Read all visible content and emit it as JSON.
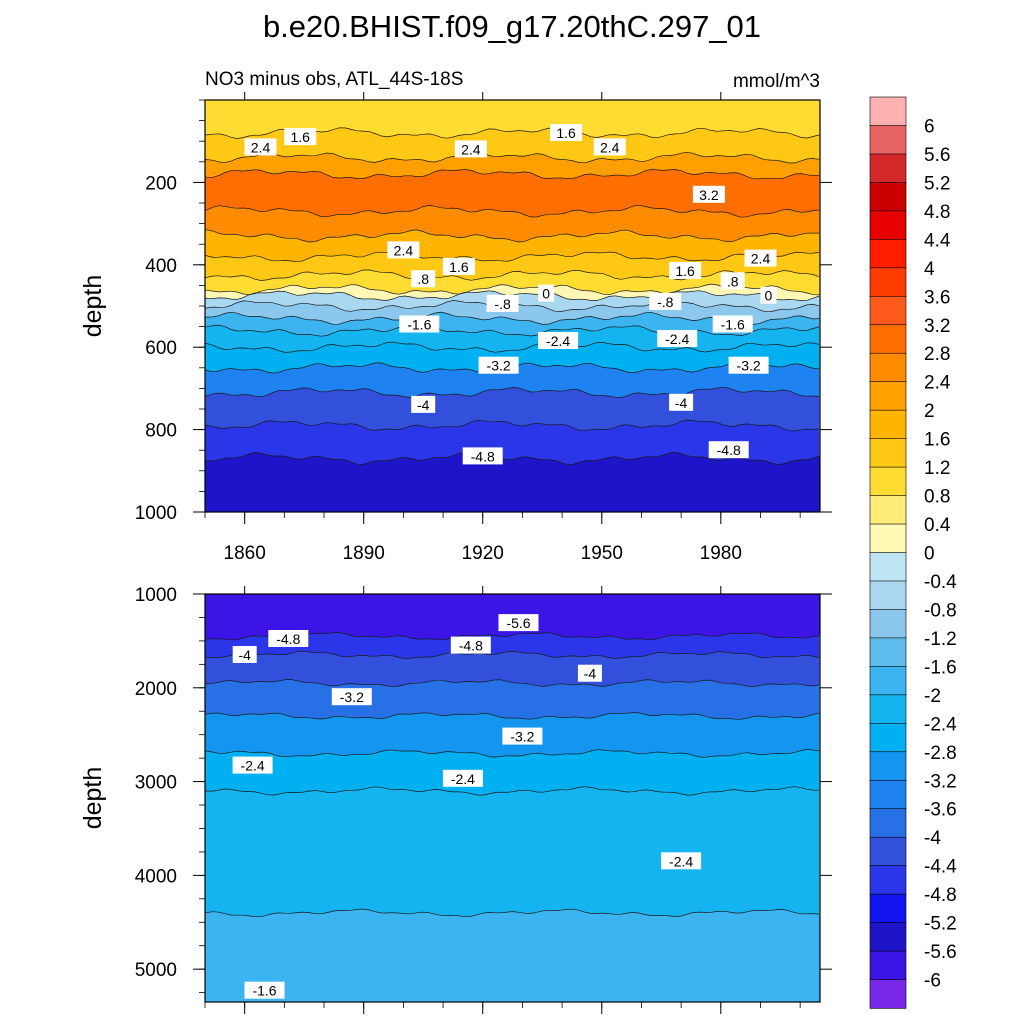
{
  "figure": {
    "title": "b.e20.BHIST.f09_g17.20thC.297_01",
    "subtitle_left": "NO3 minus obs, ATL_44S-18S",
    "subtitle_right": "mmol/m^3"
  },
  "chart_data": [
    {
      "type": "heatmap",
      "panel": "upper",
      "ylabel": "depth",
      "xlabel": "",
      "x_ticks": [
        1860,
        1890,
        1920,
        1950,
        1980
      ],
      "xlim": [
        1850,
        2005
      ],
      "y_ticks": [
        200,
        400,
        600,
        800,
        1000
      ],
      "ylim": [
        0,
        1000
      ],
      "y_inverted": true,
      "bands": [
        {
          "from": 0,
          "to": 80,
          "value": 1.2
        },
        {
          "from": 80,
          "to": 140,
          "value": 1.6
        },
        {
          "from": 140,
          "to": 180,
          "value": 2.4
        },
        {
          "from": 180,
          "to": 270,
          "value": 3.0
        },
        {
          "from": 270,
          "to": 330,
          "value": 2.6
        },
        {
          "from": 330,
          "to": 380,
          "value": 2.0
        },
        {
          "from": 380,
          "to": 425,
          "value": 1.6
        },
        {
          "from": 425,
          "to": 460,
          "value": 1.0
        },
        {
          "from": 460,
          "to": 475,
          "value": 0.4
        },
        {
          "from": 475,
          "to": 500,
          "value": -0.4
        },
        {
          "from": 500,
          "to": 530,
          "value": -1.0
        },
        {
          "from": 530,
          "to": 560,
          "value": -1.6
        },
        {
          "from": 560,
          "to": 600,
          "value": -2.2
        },
        {
          "from": 600,
          "to": 650,
          "value": -2.8
        },
        {
          "from": 650,
          "to": 710,
          "value": -3.4
        },
        {
          "from": 710,
          "to": 790,
          "value": -4.0
        },
        {
          "from": 790,
          "to": 870,
          "value": -4.6
        },
        {
          "from": 870,
          "to": 1000,
          "value": -5.2
        }
      ],
      "contour_labels": [
        {
          "text": "1.6",
          "x": 1874,
          "y": 90
        },
        {
          "text": "2.4",
          "x": 1864,
          "y": 115
        },
        {
          "text": "2.4",
          "x": 1917,
          "y": 120
        },
        {
          "text": "1.6",
          "x": 1941,
          "y": 80
        },
        {
          "text": "2.4",
          "x": 1952,
          "y": 115
        },
        {
          "text": "3.2",
          "x": 1977,
          "y": 230
        },
        {
          "text": "2.4",
          "x": 1900,
          "y": 365
        },
        {
          "text": "1.6",
          "x": 1914,
          "y": 405
        },
        {
          "text": "2.4",
          "x": 1990,
          "y": 385
        },
        {
          "text": "1.6",
          "x": 1971,
          "y": 415
        },
        {
          "text": ".8",
          "x": 1905,
          "y": 435
        },
        {
          "text": ".8",
          "x": 1983,
          "y": 440
        },
        {
          "text": "0",
          "x": 1936,
          "y": 470
        },
        {
          "text": "0",
          "x": 1992,
          "y": 475
        },
        {
          "text": "-.8",
          "x": 1925,
          "y": 495
        },
        {
          "text": "-.8",
          "x": 1966,
          "y": 490
        },
        {
          "text": "-1.6",
          "x": 1904,
          "y": 545
        },
        {
          "text": "-1.6",
          "x": 1983,
          "y": 545
        },
        {
          "text": "-2.4",
          "x": 1939,
          "y": 585
        },
        {
          "text": "-2.4",
          "x": 1969,
          "y": 580
        },
        {
          "text": "-3.2",
          "x": 1924,
          "y": 645
        },
        {
          "text": "-3.2",
          "x": 1987,
          "y": 645
        },
        {
          "text": "-4",
          "x": 1905,
          "y": 740
        },
        {
          "text": "-4",
          "x": 1970,
          "y": 735
        },
        {
          "text": "-4.8",
          "x": 1920,
          "y": 865
        },
        {
          "text": "-4.8",
          "x": 1982,
          "y": 850
        }
      ]
    },
    {
      "type": "heatmap",
      "panel": "lower",
      "ylabel": "depth",
      "xlabel": "",
      "x_ticks": [
        1860,
        1890,
        1920,
        1950,
        1980
      ],
      "xlim": [
        1850,
        2005
      ],
      "y_ticks": [
        1000,
        2000,
        3000,
        4000,
        5000
      ],
      "ylim": [
        1000,
        5350
      ],
      "y_inverted": true,
      "bands": [
        {
          "from": 1000,
          "to": 1450,
          "value": -5.6
        },
        {
          "from": 1450,
          "to": 1650,
          "value": -4.8
        },
        {
          "from": 1650,
          "to": 1950,
          "value": -4.2
        },
        {
          "from": 1950,
          "to": 2300,
          "value": -3.6
        },
        {
          "from": 2300,
          "to": 2700,
          "value": -3.0
        },
        {
          "from": 2700,
          "to": 3100,
          "value": -2.6
        },
        {
          "from": 3100,
          "to": 4400,
          "value": -2.2
        },
        {
          "from": 4400,
          "to": 5350,
          "value": -1.8
        }
      ],
      "contour_labels": [
        {
          "text": "-5.6",
          "x": 1929,
          "y": 1310
        },
        {
          "text": "-4.8",
          "x": 1871,
          "y": 1480
        },
        {
          "text": "-4.8",
          "x": 1917,
          "y": 1550
        },
        {
          "text": "-4",
          "x": 1860,
          "y": 1650
        },
        {
          "text": "-4",
          "x": 1947,
          "y": 1850
        },
        {
          "text": "-3.2",
          "x": 1887,
          "y": 2100
        },
        {
          "text": "-3.2",
          "x": 1930,
          "y": 2520
        },
        {
          "text": "-2.4",
          "x": 1862,
          "y": 2830
        },
        {
          "text": "-2.4",
          "x": 1915,
          "y": 2970
        },
        {
          "text": "-2.4",
          "x": 1970,
          "y": 3850
        },
        {
          "text": "-1.6",
          "x": 1865,
          "y": 5230
        }
      ]
    }
  ],
  "colorbar": {
    "ticks": [
      "6",
      "5.6",
      "5.2",
      "4.8",
      "4.4",
      "4",
      "3.6",
      "3.2",
      "2.8",
      "2.4",
      "2",
      "1.6",
      "1.2",
      "0.8",
      "0.4",
      "0",
      "-0.4",
      "-0.8",
      "-1.2",
      "-1.6",
      "-2",
      "-2.4",
      "-2.8",
      "-3.2",
      "-3.6",
      "-4",
      "-4.4",
      "-4.8",
      "-5.2",
      "-5.6",
      "-6"
    ],
    "colors": [
      "#ffb0b0",
      "#e86464",
      "#d22828",
      "#cc0000",
      "#e60000",
      "#ff1e00",
      "#ff3c00",
      "#ff5a1e",
      "#ff6e00",
      "#ff8c00",
      "#ffa000",
      "#ffb400",
      "#ffc814",
      "#ffdc32",
      "#ffeb78",
      "#fff8b4",
      "#c0e6f6",
      "#aad8f0",
      "#8cc8ee",
      "#60beee",
      "#3cb4f0",
      "#14b4f0",
      "#00b0f0",
      "#1496f0",
      "#1e82f0",
      "#2870e6",
      "#3250dc",
      "#2a36e8",
      "#1414f0",
      "#1e14c8",
      "#3c14e6",
      "#7828e8"
    ]
  }
}
